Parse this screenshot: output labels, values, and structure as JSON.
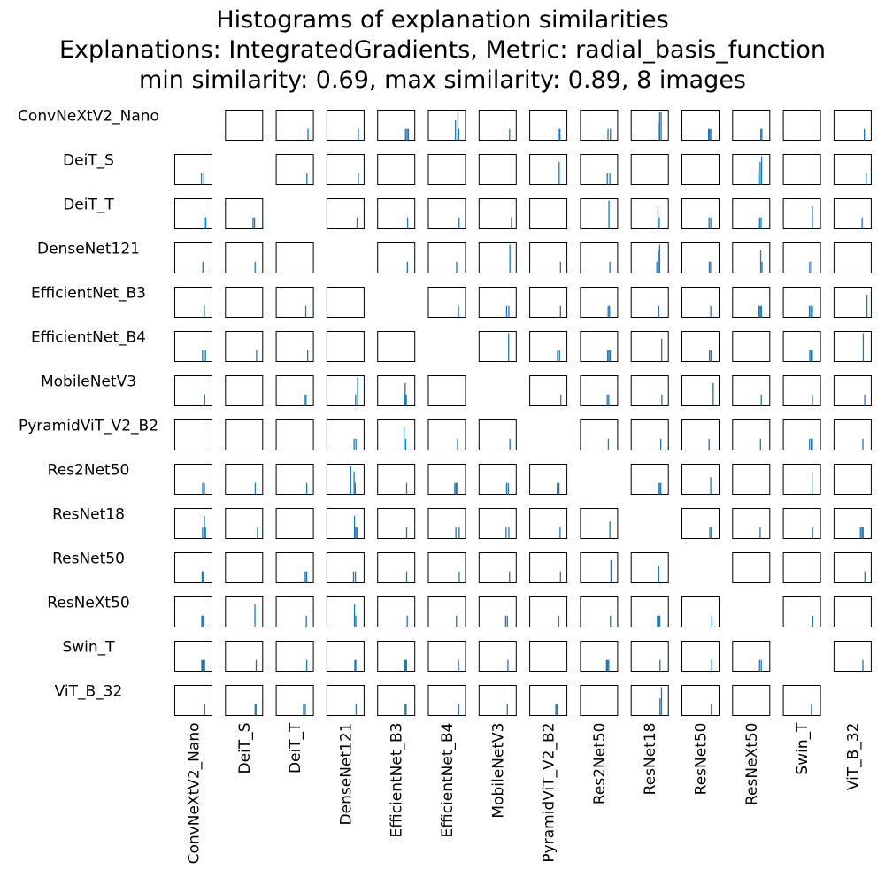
{
  "title_lines": [
    "Histograms of explanation similarities",
    "Explanations: IntegratedGradients, Metric: radial_basis_function",
    "min similarity: 0.69, max similarity: 0.89, 8 images"
  ],
  "colors": {
    "bar": "#1f77b4",
    "frame": "#000000",
    "text": "#000000"
  },
  "chart_data": {
    "type": "histogram-matrix",
    "title": "Histograms of explanation similarities",
    "explanations": "IntegratedGradients",
    "metric": "radial_basis_function",
    "min_similarity": 0.69,
    "max_similarity": 0.89,
    "n_images": 8,
    "xlim": [
      0.69,
      0.89
    ],
    "models": [
      "ConvNeXtV2_Nano",
      "DeiT_S",
      "DeiT_T",
      "DenseNet121",
      "EfficientNet_B3",
      "EfficientNet_B4",
      "MobileNetV3",
      "PyramidViT_V2_B2",
      "Res2Net50",
      "ResNet18",
      "ResNet50",
      "ResNeXt50",
      "Swin_T",
      "ViT_B_32"
    ],
    "histograms": [
      [
        null,
        [],
        [
          [
            0.861,
            4
          ]
        ],
        [
          [
            0.859,
            4
          ]
        ],
        [
          [
            0.84,
            4
          ],
          [
            0.848,
            4
          ],
          [
            0.855,
            4
          ]
        ],
        [
          [
            0.836,
            7
          ],
          [
            0.849,
            10
          ],
          [
            0.854,
            4
          ]
        ],
        [
          [
            0.854,
            4
          ]
        ],
        [
          [
            0.844,
            4
          ],
          [
            0.852,
            4
          ]
        ],
        [
          [
            0.838,
            4
          ],
          [
            0.851,
            4
          ]
        ],
        [
          [
            0.835,
            6
          ],
          [
            0.843,
            10
          ],
          [
            0.851,
            10
          ]
        ],
        [
          [
            0.833,
            4
          ],
          [
            0.838,
            4
          ],
          [
            0.845,
            4
          ]
        ],
        [
          [
            0.842,
            4
          ],
          [
            0.847,
            4
          ]
        ],
        [],
        [
          [
            0.853,
            4
          ]
        ]
      ],
      [
        [
          [
            0.833,
            4
          ],
          [
            0.846,
            4
          ]
        ],
        null,
        [
          [
            0.855,
            4
          ]
        ],
        [
          [
            0.859,
            4
          ]
        ],
        [],
        [],
        [],
        [
          [
            0.848,
            8
          ]
        ],
        [
          [
            0.834,
            4
          ],
          [
            0.848,
            4
          ]
        ],
        [],
        [],
        [
          [
            0.827,
            4
          ],
          [
            0.838,
            8
          ],
          [
            0.846,
            10
          ]
        ],
        [],
        [
          [
            0.863,
            4
          ]
        ]
      ],
      [
        [
          [
            0.848,
            4
          ],
          [
            0.857,
            4
          ]
        ],
        [
          [
            0.838,
            4
          ],
          [
            0.846,
            4
          ]
        ],
        null,
        [
          [
            0.852,
            4
          ]
        ],
        [
          [
            0.851,
            4
          ]
        ],
        [
          [
            0.855,
            4
          ]
        ],
        [
          [
            0.864,
            4
          ]
        ],
        [],
        [
          [
            0.843,
            10
          ]
        ],
        [
          [
            0.834,
            8
          ],
          [
            0.841,
            4
          ]
        ],
        [
          [
            0.836,
            4
          ],
          [
            0.845,
            4
          ]
        ],
        [
          [
            0.835,
            4
          ],
          [
            0.843,
            4
          ]
        ],
        [
          [
            0.846,
            8
          ]
        ],
        [
          [
            0.841,
            4
          ]
        ]
      ],
      [
        [
          [
            0.841,
            4
          ]
        ],
        [
          [
            0.849,
            4
          ]
        ],
        [],
        null,
        [
          [
            0.85,
            4
          ]
        ],
        [
          [
            0.842,
            4
          ]
        ],
        [
          [
            0.856,
            10
          ]
        ],
        [
          [
            0.855,
            4
          ]
        ],
        [
          [
            0.848,
            4
          ]
        ],
        [
          [
            0.828,
            4
          ],
          [
            0.836,
            8
          ],
          [
            0.843,
            10
          ]
        ],
        [
          [
            0.837,
            4
          ],
          [
            0.844,
            4
          ]
        ],
        [
          [
            0.841,
            8
          ],
          [
            0.848,
            4
          ]
        ],
        [
          [
            0.832,
            4
          ],
          [
            0.843,
            4
          ]
        ],
        []
      ],
      [
        [
          [
            0.849,
            4
          ]
        ],
        [],
        [
          [
            0.849,
            4
          ]
        ],
        [],
        null,
        [
          [
            0.852,
            4
          ]
        ],
        [
          [
            0.838,
            4
          ],
          [
            0.85,
            4
          ]
        ],
        [
          [
            0.855,
            4
          ]
        ],
        [
          [
            0.839,
            4
          ],
          [
            0.846,
            4
          ]
        ],
        [
          [
            0.838,
            4
          ]
        ],
        [
          [
            0.845,
            4
          ]
        ],
        [
          [
            0.832,
            4
          ],
          [
            0.839,
            4
          ],
          [
            0.845,
            4
          ]
        ],
        [
          [
            0.83,
            4
          ],
          [
            0.838,
            4
          ],
          [
            0.846,
            4
          ]
        ],
        [
          [
            0.867,
            8
          ]
        ]
      ],
      [
        [
          [
            0.839,
            4
          ],
          [
            0.855,
            4
          ]
        ],
        [
          [
            0.857,
            4
          ]
        ],
        [
          [
            0.859,
            4
          ]
        ],
        [],
        [],
        null,
        [
          [
            0.849,
            10
          ]
        ],
        [
          [
            0.839,
            4
          ],
          [
            0.85,
            4
          ]
        ],
        [
          [
            0.836,
            4
          ],
          [
            0.843,
            4
          ],
          [
            0.85,
            4
          ]
        ],
        [
          [
            0.854,
            8
          ]
        ],
        [
          [
            0.838,
            4
          ],
          [
            0.846,
            4
          ]
        ],
        [],
        [
          [
            0.832,
            4
          ],
          [
            0.839,
            4
          ],
          [
            0.846,
            4
          ]
        ],
        [
          [
            0.847,
            10
          ]
        ]
      ],
      [
        [
          [
            0.851,
            4
          ]
        ],
        [],
        [
          [
            0.842,
            4
          ],
          [
            0.85,
            4
          ]
        ],
        [
          [
            0.844,
            4
          ],
          [
            0.855,
            10
          ]
        ],
        [
          [
            0.833,
            4
          ],
          [
            0.838,
            8
          ],
          [
            0.844,
            4
          ]
        ],
        [],
        null,
        [
          [
            0.857,
            4
          ]
        ],
        [
          [
            0.834,
            4
          ],
          [
            0.842,
            4
          ]
        ],
        [
          [
            0.855,
            4
          ]
        ],
        [
          [
            0.858,
            8
          ]
        ],
        [
          [
            0.844,
            4
          ]
        ],
        [
          [
            0.846,
            4
          ]
        ],
        [
          [
            0.855,
            4
          ]
        ]
      ],
      [
        [],
        [],
        [],
        [
          [
            0.836,
            4
          ],
          [
            0.846,
            4
          ]
        ],
        [
          [
            0.832,
            8
          ],
          [
            0.841,
            4
          ]
        ],
        [
          [
            0.847,
            4
          ]
        ],
        [
          [
            0.856,
            4
          ]
        ],
        null,
        [
          [
            0.84,
            4
          ]
        ],
        [
          [
            0.849,
            4
          ]
        ],
        [
          [
            0.836,
            4
          ]
        ],
        [
          [
            0.84,
            4
          ]
        ],
        [
          [
            0.831,
            4
          ],
          [
            0.84,
            4
          ],
          [
            0.846,
            4
          ]
        ],
        [
          [
            0.845,
            4
          ]
        ]
      ],
      [
        [
          [
            0.84,
            4
          ],
          [
            0.849,
            4
          ]
        ],
        [
          [
            0.85,
            4
          ]
        ],
        [
          [
            0.854,
            4
          ]
        ],
        [
          [
            0.818,
            10
          ],
          [
            0.836,
            8
          ],
          [
            0.842,
            4
          ]
        ],
        [
          [
            0.846,
            4
          ]
        ],
        [
          [
            0.832,
            4
          ],
          [
            0.839,
            4
          ],
          [
            0.846,
            4
          ]
        ],
        [
          [
            0.838,
            4
          ],
          [
            0.847,
            4
          ]
        ],
        [
          [
            0.838,
            4
          ],
          [
            0.847,
            4
          ]
        ],
        null,
        [
          [
            0.835,
            4
          ],
          [
            0.842,
            4
          ],
          [
            0.849,
            4
          ]
        ],
        [
          [
            0.845,
            6
          ]
        ],
        [],
        [
          [
            0.845,
            8
          ]
        ],
        []
      ],
      [
        [
          [
            0.839,
            4
          ],
          [
            0.849,
            8
          ],
          [
            0.855,
            4
          ]
        ],
        [
          [
            0.862,
            4
          ]
        ],
        [],
        [
          [
            0.838,
            8
          ],
          [
            0.844,
            4
          ],
          [
            0.851,
            4
          ]
        ],
        [
          [
            0.846,
            4
          ]
        ],
        [
          [
            0.838,
            4
          ],
          [
            0.856,
            4
          ]
        ],
        [
          [
            0.835,
            4
          ],
          [
            0.85,
            4
          ]
        ],
        [
          [
            0.853,
            4
          ]
        ],
        [
          [
            0.848,
            6
          ]
        ],
        null,
        [
          [
            0.84,
            4
          ],
          [
            0.848,
            4
          ]
        ],
        [
          [
            0.838,
            4
          ]
        ],
        [
          [
            0.847,
            4
          ]
        ],
        [
          [
            0.832,
            4
          ],
          [
            0.84,
            4
          ],
          [
            0.846,
            4
          ]
        ]
      ],
      [
        [
          [
            0.837,
            4
          ],
          [
            0.843,
            4
          ]
        ],
        [],
        [
          [
            0.842,
            4
          ],
          [
            0.851,
            4
          ],
          [
            0.854,
            4
          ]
        ],
        [
          [
            0.833,
            4
          ],
          [
            0.843,
            4
          ]
        ],
        [
          [
            0.846,
            4
          ]
        ],
        [
          [
            0.856,
            4
          ]
        ],
        [
          [
            0.854,
            4
          ]
        ],
        [
          [
            0.855,
            4
          ]
        ],
        [
          [
            0.854,
            8
          ]
        ],
        [
          [
            0.838,
            6
          ]
        ],
        null,
        [],
        [],
        [
          [
            0.856,
            4
          ]
        ]
      ],
      [
        [
          [
            0.835,
            4
          ],
          [
            0.841,
            4
          ],
          [
            0.846,
            4
          ]
        ],
        [
          [
            0.848,
            8
          ]
        ],
        [
          [
            0.852,
            4
          ]
        ],
        [
          [
            0.838,
            8
          ],
          [
            0.845,
            4
          ]
        ],
        [
          [
            0.849,
            4
          ]
        ],
        [
          [
            0.841,
            4
          ]
        ],
        [
          [
            0.833,
            4
          ],
          [
            0.842,
            4
          ]
        ],
        [
          [
            0.846,
            4
          ]
        ],
        [
          [
            0.851,
            4
          ]
        ],
        [
          [
            0.831,
            4
          ],
          [
            0.838,
            4
          ],
          [
            0.844,
            4
          ]
        ],
        [
          [
            0.851,
            4
          ]
        ],
        null,
        [
          [
            0.848,
            4
          ]
        ],
        []
      ],
      [
        [
          [
            0.835,
            4
          ],
          [
            0.84,
            4
          ],
          [
            0.845,
            4
          ],
          [
            0.85,
            4
          ]
        ],
        [
          [
            0.855,
            4
          ]
        ],
        [
          [
            0.854,
            4
          ]
        ],
        [
          [
            0.84,
            4
          ],
          [
            0.845,
            4
          ]
        ],
        [
          [
            0.833,
            4
          ],
          [
            0.837,
            4
          ],
          [
            0.841,
            4
          ],
          [
            0.845,
            4
          ]
        ],
        [
          [
            0.852,
            4
          ]
        ],
        [
          [
            0.845,
            4
          ]
        ],
        [],
        [
          [
            0.83,
            4
          ],
          [
            0.836,
            4
          ],
          [
            0.842,
            4
          ]
        ],
        [
          [
            0.845,
            4
          ]
        ],
        [
          [
            0.85,
            4
          ]
        ],
        [
          [
            0.835,
            4
          ],
          [
            0.844,
            4
          ]
        ],
        null,
        [
          [
            0.845,
            4
          ]
        ]
      ],
      [
        [
          [
            0.851,
            4
          ]
        ],
        [
          [
            0.849,
            4
          ],
          [
            0.854,
            4
          ]
        ],
        [
          [
            0.837,
            4
          ],
          [
            0.846,
            4
          ]
        ],
        [
          [
            0.847,
            4
          ]
        ],
        [
          [
            0.838,
            4
          ],
          [
            0.843,
            4
          ]
        ],
        [
          [
            0.853,
            4
          ]
        ],
        [
          [
            0.842,
            4
          ]
        ],
        [
          [
            0.83,
            4
          ],
          [
            0.836,
            4
          ]
        ],
        [],
        [
          [
            0.845,
            6
          ],
          [
            0.853,
            10
          ]
        ],
        [
          [
            0.848,
            4
          ]
        ],
        [],
        [
          [
            0.841,
            4
          ]
        ],
        null
      ]
    ]
  }
}
